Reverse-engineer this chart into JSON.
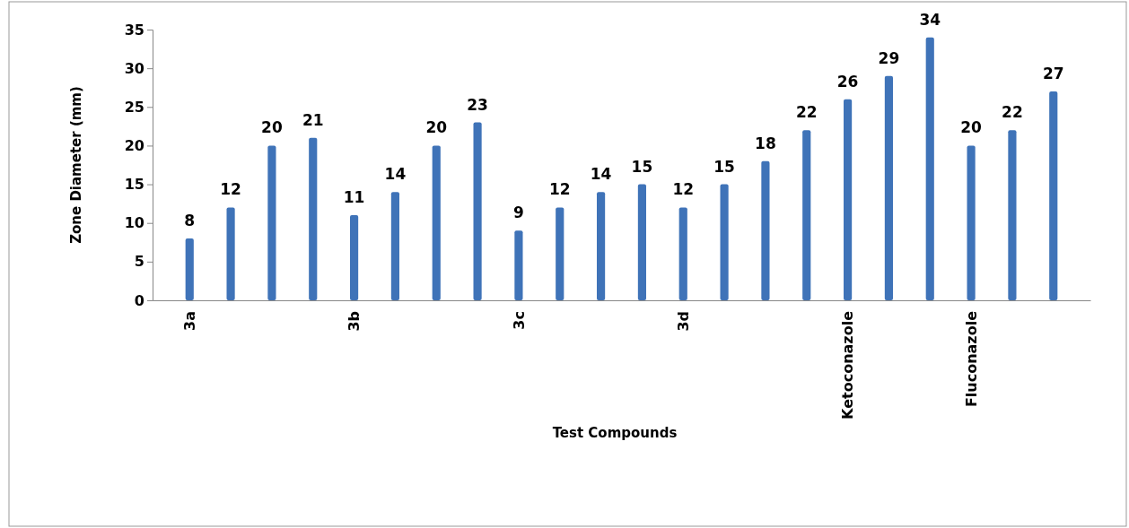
{
  "chart_data": {
    "type": "bar",
    "xlabel": "Test Compounds",
    "ylabel": "Zone Diameter (mm)",
    "categories": [
      "3a",
      null,
      null,
      null,
      "3b",
      null,
      null,
      null,
      "3c",
      null,
      null,
      null,
      "3d",
      null,
      null,
      null,
      "Ketoconazole",
      null,
      null,
      "Fluconazole",
      null,
      null
    ],
    "values": [
      8,
      12,
      20,
      21,
      11,
      14,
      20,
      23,
      9,
      12,
      14,
      15,
      12,
      15,
      18,
      22,
      26,
      29,
      34,
      20,
      22,
      27
    ],
    "color": "#3f73b8",
    "ylim": [
      0,
      35
    ],
    "yticks": [
      0,
      5,
      10,
      15,
      20,
      25,
      30,
      35
    ],
    "data_labels": true,
    "grid": false
  }
}
